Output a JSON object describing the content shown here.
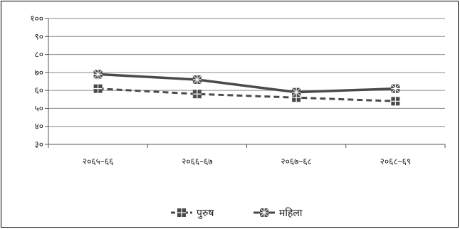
{
  "chart_data": {
    "type": "line",
    "categories": [
      "२०६५–६६",
      "२०६६–६७",
      "२०६७–६८",
      "२०६८–६९"
    ],
    "y_ticks": [
      "३०",
      "४०",
      "५०",
      "६०",
      "७०",
      "८०",
      "९०",
      "१००"
    ],
    "ylim": [
      30,
      100
    ],
    "grid": true,
    "legend_position": "bottom",
    "series": [
      {
        "name": "पुरुष",
        "values": [
          61,
          58,
          56,
          54
        ],
        "color": "#4a4a4a",
        "dashed": true
      },
      {
        "name": "महिला",
        "values": [
          69,
          66,
          59,
          61
        ],
        "color": "#4a4a4a",
        "dashed": false
      }
    ]
  }
}
